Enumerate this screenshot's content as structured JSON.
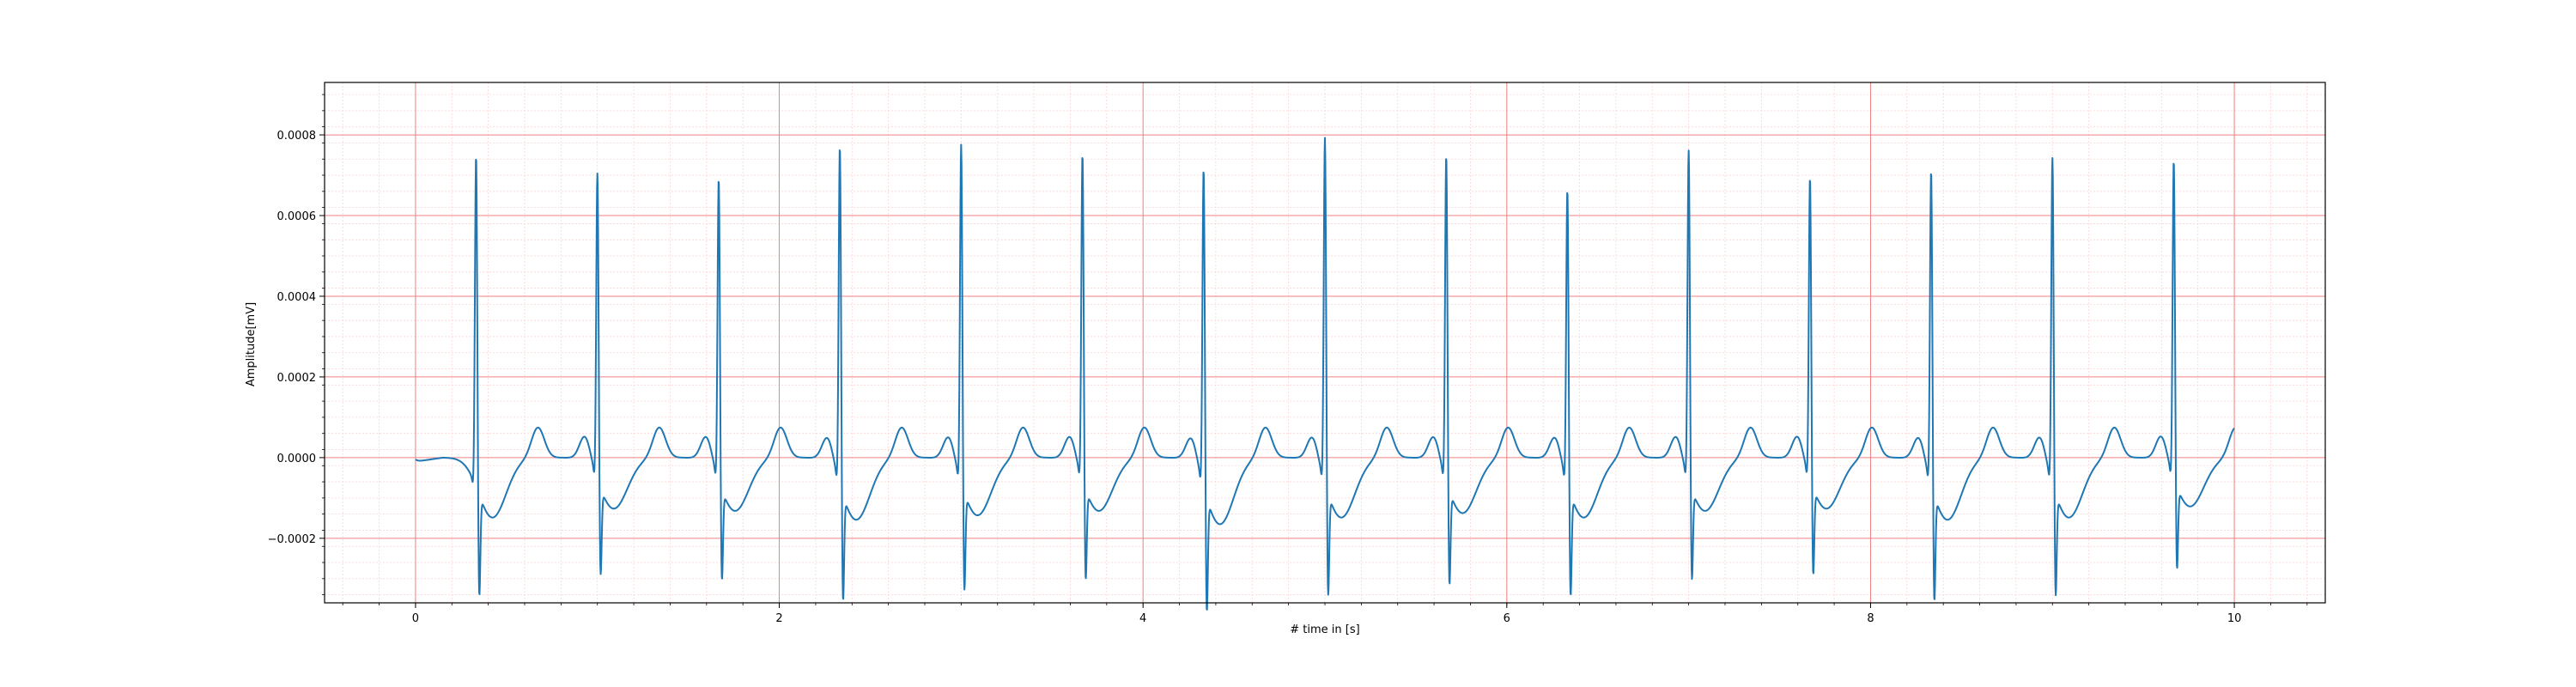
{
  "chart_data": {
    "type": "line",
    "title": "",
    "xlabel": "# time in [s]",
    "ylabel": "Amplitude[mV]",
    "xlim": [
      -0.5,
      10.5
    ],
    "ylim": [
      -0.00036,
      0.00093
    ],
    "x_ticks": [
      0,
      2,
      4,
      6,
      8,
      10
    ],
    "x_tick_labels": [
      "0",
      "2",
      "4",
      "6",
      "8",
      "10"
    ],
    "y_ticks": [
      -0.0002,
      0.0,
      0.0002,
      0.0004,
      0.0006,
      0.0008
    ],
    "y_tick_labels": [
      "−0.0002",
      "0.0000",
      "0.0002",
      "0.0004",
      "0.0006",
      "0.0008"
    ],
    "grid": true,
    "grid_major_color": "#f08080",
    "grid_minor_color": "#fbd4d4",
    "line_color": "#1f77b4",
    "series": [
      {
        "r_peak_times": [
          0.333,
          1.0,
          1.667,
          2.333,
          3.0,
          3.667,
          4.333,
          5.0,
          5.667,
          6.333,
          7.0,
          7.667,
          8.333,
          9.0,
          9.667
        ],
        "r_peak_amplitudes": [
          0.00083,
          0.00077,
          0.00076,
          0.00085,
          0.00085,
          0.00082,
          0.0008,
          0.00087,
          0.00082,
          0.00074,
          0.00083,
          0.00076,
          0.00079,
          0.00082,
          0.0008
        ],
        "s_wave_amplitudes": [
          -0.00027,
          -0.00023,
          -0.00024,
          -0.00028,
          -0.00026,
          -0.00024,
          -0.0003,
          -0.00027,
          -0.00025,
          -0.00027,
          -0.00024,
          -0.00023,
          -0.00028,
          -0.00027,
          -0.00022
        ],
        "start_value": -1e-05,
        "end_value": 3e-05
      }
    ]
  }
}
